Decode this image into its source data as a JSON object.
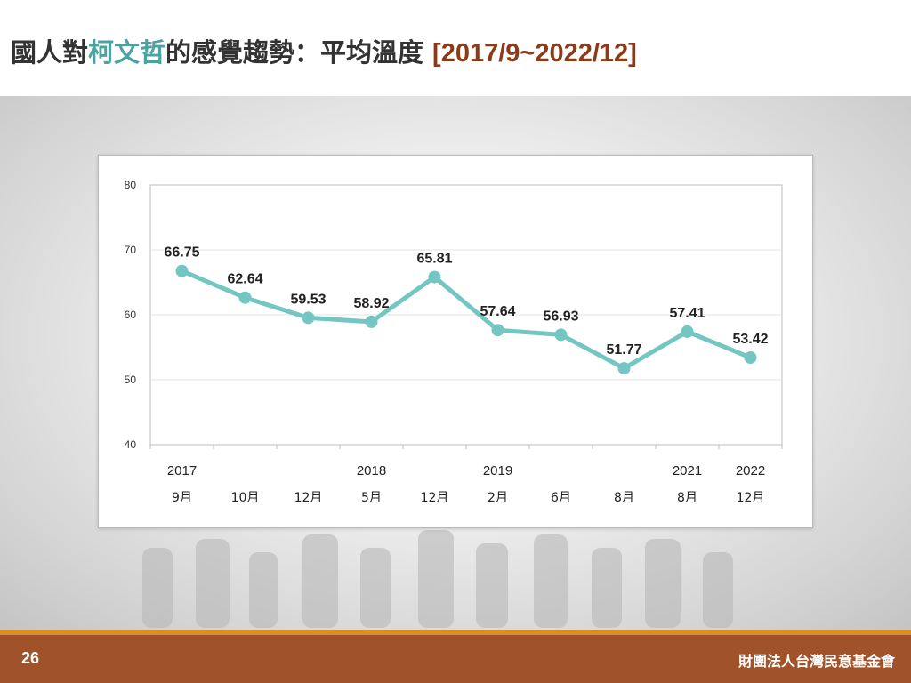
{
  "slide": {
    "title_prefix": "國人對",
    "title_highlight": "柯文哲",
    "title_suffix": "的感覺趨勢：平均溫度",
    "title_range": "[2017/9~2022/12]",
    "page_number": "26",
    "organization": "財團法人台灣民意基金會"
  },
  "colors": {
    "line": "#74c6c2",
    "highlight": "#4aa3a1",
    "range": "#8b3a1a",
    "footer": "#a0532a",
    "footer_stripe": "#d9902a"
  },
  "chart_data": {
    "type": "line",
    "x_years": [
      "2017",
      "",
      "",
      "2018",
      "",
      "2019",
      "",
      "",
      "2021",
      "2022"
    ],
    "x_months": [
      "9月",
      "10月",
      "12月",
      "5月",
      "12月",
      "2月",
      "6月",
      "8月",
      "8月",
      "12月"
    ],
    "values": [
      66.75,
      62.64,
      59.53,
      58.92,
      65.81,
      57.64,
      56.93,
      51.77,
      57.41,
      53.42
    ],
    "data_labels": [
      "66.75",
      "62.64",
      "59.53",
      "58.92",
      "65.81",
      "57.64",
      "56.93",
      "51.77",
      "57.41",
      "53.42"
    ],
    "ylim": [
      40,
      80
    ],
    "yticks": [
      "40",
      "50",
      "60",
      "70",
      "80"
    ],
    "grid": true,
    "legend": false
  }
}
